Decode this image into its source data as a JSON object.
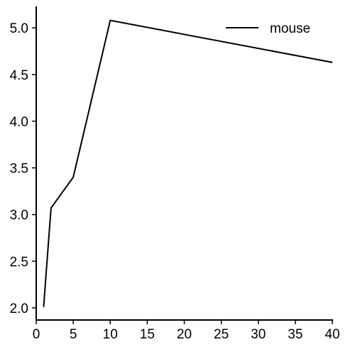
{
  "chart_data": {
    "type": "line",
    "title": "",
    "xlabel": "",
    "ylabel": "",
    "xlim": [
      0,
      40
    ],
    "ylim": [
      1.87,
      5.23
    ],
    "xticks": [
      0,
      5,
      10,
      15,
      20,
      25,
      30,
      35,
      40
    ],
    "yticks": [
      2.0,
      2.5,
      3.0,
      3.5,
      4.0,
      4.5,
      5.0
    ],
    "xtick_labels": [
      "0",
      "5",
      "10",
      "15",
      "20",
      "25",
      "30",
      "35",
      "40"
    ],
    "ytick_labels": [
      "2.0",
      "2.5",
      "3.0",
      "3.5",
      "4.0",
      "4.5",
      "5.0"
    ],
    "grid": false,
    "legend_position": "top-right",
    "series": [
      {
        "name": "mouse",
        "color": "#000000",
        "x": [
          1,
          2,
          5,
          10,
          40
        ],
        "y": [
          2.01,
          3.07,
          3.4,
          5.08,
          4.63
        ]
      }
    ]
  }
}
